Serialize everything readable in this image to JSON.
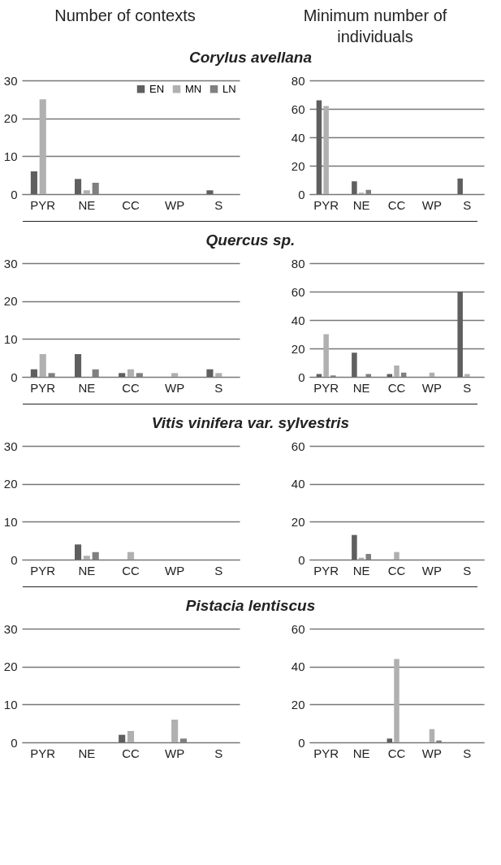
{
  "chart_data": [
    {
      "type": "bar",
      "title": "Number of contexts",
      "subtitle": "Corylus avellana",
      "categories": [
        "PYR",
        "NE",
        "CC",
        "WP",
        "S"
      ],
      "series": [
        {
          "name": "EN",
          "color": "#5f5f5f",
          "values": [
            6,
            4,
            0,
            0,
            1
          ]
        },
        {
          "name": "MN",
          "color": "#b0b0b0",
          "values": [
            25,
            1,
            0,
            0,
            0
          ]
        },
        {
          "name": "LN",
          "color": "#808080",
          "values": [
            0,
            3,
            0,
            0,
            0
          ]
        }
      ],
      "ylim": [
        0,
        30
      ],
      "yticks": [
        0,
        10,
        20,
        30
      ],
      "grid": "y",
      "legend": "top right"
    },
    {
      "type": "bar",
      "title": "Minimum number of individuals",
      "categories": [
        "PYR",
        "NE",
        "CC",
        "WP",
        "S"
      ],
      "series": [
        {
          "color": "#5f5f5f",
          "values": [
            66,
            9,
            0,
            0,
            11
          ]
        },
        {
          "color": "#b0b0b0",
          "values": [
            62,
            1,
            0,
            0,
            0
          ]
        },
        {
          "color": "#808080",
          "values": [
            0,
            3,
            0,
            0,
            0
          ]
        }
      ],
      "ylim": [
        0,
        80
      ],
      "yticks": [
        0,
        20,
        40,
        60,
        80
      ],
      "grid": "y"
    },
    {
      "type": "bar",
      "subtitle": "Quercus sp.",
      "categories": [
        "PYR",
        "NE",
        "CC",
        "WP",
        "S"
      ],
      "series": [
        {
          "color": "#5f5f5f",
          "values": [
            2,
            6,
            1,
            0,
            2
          ]
        },
        {
          "color": "#b0b0b0",
          "values": [
            6,
            0,
            2,
            1,
            1
          ]
        },
        {
          "color": "#808080",
          "values": [
            1,
            2,
            1,
            0,
            0
          ]
        }
      ],
      "ylim": [
        0,
        30
      ],
      "yticks": [
        0,
        10,
        20,
        30
      ],
      "grid": "y"
    },
    {
      "type": "bar",
      "categories": [
        "PYR",
        "NE",
        "CC",
        "WP",
        "S"
      ],
      "series": [
        {
          "color": "#5f5f5f",
          "values": [
            2,
            17,
            2,
            0,
            60
          ]
        },
        {
          "color": "#b0b0b0",
          "values": [
            30,
            0,
            8,
            3,
            2
          ]
        },
        {
          "color": "#808080",
          "values": [
            1,
            2,
            3,
            0,
            0
          ]
        }
      ],
      "ylim": [
        0,
        80
      ],
      "yticks": [
        0,
        20,
        40,
        60,
        80
      ],
      "grid": "y"
    },
    {
      "type": "bar",
      "subtitle": "Vitis vinifera var. sylvestris",
      "categories": [
        "PYR",
        "NE",
        "CC",
        "WP",
        "S"
      ],
      "series": [
        {
          "color": "#5f5f5f",
          "values": [
            0,
            4,
            0,
            0,
            0
          ]
        },
        {
          "color": "#b0b0b0",
          "values": [
            0,
            1,
            2,
            0,
            0
          ]
        },
        {
          "color": "#808080",
          "values": [
            0,
            2,
            0,
            0,
            0
          ]
        }
      ],
      "ylim": [
        0,
        30
      ],
      "yticks": [
        0,
        10,
        20,
        30
      ],
      "grid": "y"
    },
    {
      "type": "bar",
      "categories": [
        "PYR",
        "NE",
        "CC",
        "WP",
        "S"
      ],
      "series": [
        {
          "color": "#5f5f5f",
          "values": [
            0,
            13,
            0,
            0,
            0
          ]
        },
        {
          "color": "#b0b0b0",
          "values": [
            0,
            1,
            4,
            0,
            0
          ]
        },
        {
          "color": "#808080",
          "values": [
            0,
            3,
            0,
            0,
            0
          ]
        }
      ],
      "ylim": [
        0,
        60
      ],
      "yticks": [
        0,
        20,
        40,
        60
      ],
      "grid": "y"
    },
    {
      "type": "bar",
      "subtitle": "Pistacia lentiscus",
      "categories": [
        "PYR",
        "NE",
        "CC",
        "WP",
        "S"
      ],
      "series": [
        {
          "color": "#5f5f5f",
          "values": [
            0,
            0,
            2,
            0,
            0
          ]
        },
        {
          "color": "#b0b0b0",
          "values": [
            0,
            0,
            3,
            6,
            0
          ]
        },
        {
          "color": "#808080",
          "values": [
            0,
            0,
            0,
            1,
            0
          ]
        }
      ],
      "ylim": [
        0,
        30
      ],
      "yticks": [
        0,
        10,
        20,
        30
      ],
      "grid": "y"
    },
    {
      "type": "bar",
      "categories": [
        "PYR",
        "NE",
        "CC",
        "WP",
        "S"
      ],
      "series": [
        {
          "color": "#5f5f5f",
          "values": [
            0,
            0,
            2,
            0,
            0
          ]
        },
        {
          "color": "#b0b0b0",
          "values": [
            0,
            0,
            44,
            7,
            0
          ]
        },
        {
          "color": "#808080",
          "values": [
            0,
            0,
            0,
            1,
            0
          ]
        }
      ],
      "ylim": [
        0,
        60
      ],
      "yticks": [
        0,
        20,
        40,
        60
      ],
      "grid": "y"
    }
  ]
}
